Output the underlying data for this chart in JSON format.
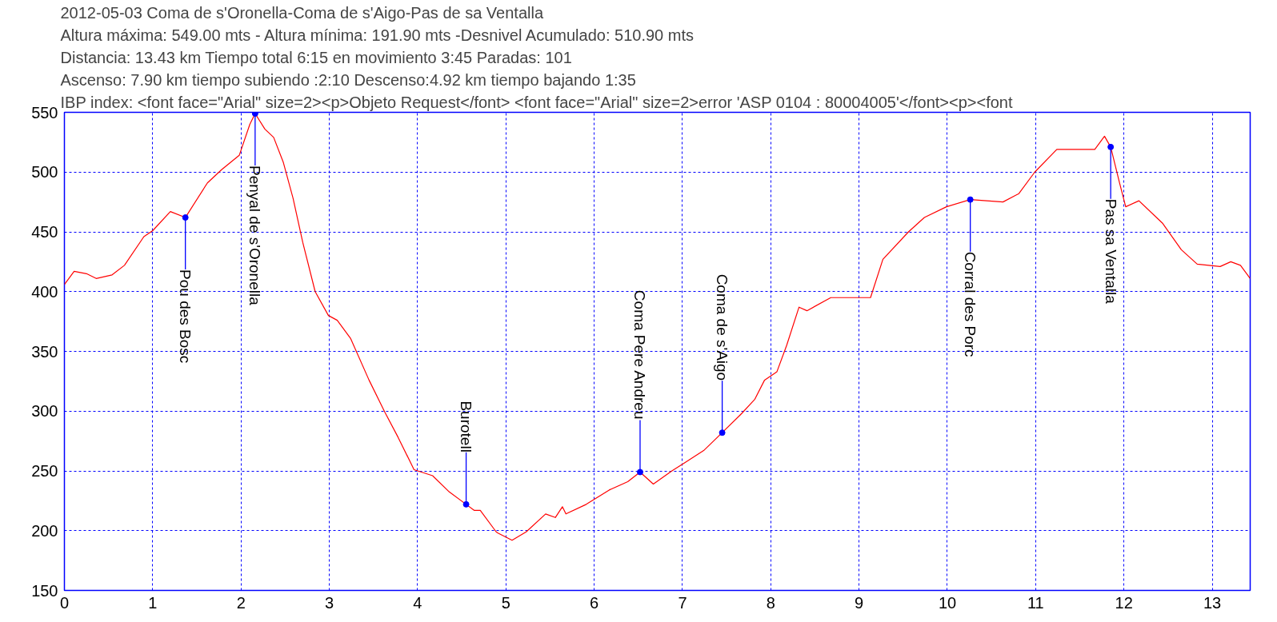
{
  "chart_data": {
    "type": "line",
    "title": "2012-05-03 Coma de s'Oronella-Coma de s'Aigo-Pas de sa Ventalla",
    "subtitle": "Altura máxima: 549.00 mts - Altura mínima: 191.90 mts -Desnivel Acumulado: 510.90 mts",
    "xlim": [
      0,
      13.43
    ],
    "ylim": [
      150,
      550
    ],
    "xticks": [
      0,
      1,
      2,
      3,
      4,
      5,
      6,
      7,
      8,
      9,
      10,
      11,
      12,
      13
    ],
    "yticks": [
      150,
      200,
      250,
      300,
      350,
      400,
      450,
      500,
      550
    ],
    "grid": true,
    "series": [
      {
        "color": "#ff0000",
        "x": [
          0,
          0.11,
          0.25,
          0.36,
          0.54,
          0.68,
          0.9,
          1.0,
          1.2,
          1.37,
          1.62,
          1.78,
          1.98,
          2.1,
          2.16,
          2.27,
          2.37,
          2.48,
          2.59,
          2.7,
          2.84,
          2.99,
          3.09,
          3.24,
          3.45,
          3.63,
          3.78,
          3.96,
          4.17,
          4.35,
          4.55,
          4.64,
          4.71,
          4.89,
          4.91,
          5.07,
          5.23,
          5.45,
          5.56,
          5.64,
          5.68,
          5.91,
          6.17,
          6.38,
          6.52,
          6.67,
          6.88,
          7.03,
          7.24,
          7.45,
          7.67,
          7.82,
          7.93,
          8.07,
          8.18,
          8.32,
          8.41,
          8.68,
          9.0,
          9.13,
          9.27,
          9.56,
          9.74,
          9.99,
          10.26,
          10.63,
          10.81,
          10.99,
          11.24,
          11.67,
          11.78,
          11.85,
          11.95,
          12.02,
          12.17,
          12.44,
          12.65,
          12.83,
          13.09,
          13.21,
          13.32,
          13.43
        ],
        "values": [
          406,
          417,
          415,
          411,
          414,
          422,
          446,
          451,
          467,
          462,
          491,
          502,
          514,
          540,
          549,
          536,
          529,
          508,
          478,
          441,
          400,
          380,
          376,
          361,
          326,
          299,
          278,
          251,
          246,
          233,
          222,
          217,
          217,
          199,
          198,
          192,
          199,
          214,
          211,
          220,
          214,
          222,
          234,
          241,
          249,
          239,
          250,
          257,
          267,
          282,
          298,
          310,
          326,
          333,
          355,
          387,
          384,
          395,
          395,
          395,
          427,
          450,
          462,
          471,
          477,
          475,
          482,
          500,
          519,
          519,
          530,
          521,
          491,
          471,
          476,
          457,
          435,
          423,
          421,
          425,
          422,
          411
        ]
      },
      {
        "type": "scatter",
        "color": "#0000ff",
        "marker": "circle",
        "x": [
          1.37,
          2.16,
          4.55,
          6.52,
          7.45,
          10.26,
          11.85
        ],
        "values": [
          462,
          549,
          222,
          249,
          282,
          477,
          521
        ]
      }
    ],
    "annotations": [
      "Distancia: 13.43 km  Tiempo total 6:15  en movimiento 3:45 Paradas: 101",
      "Ascenso: 7.90 km  tiempo subiendo :2:10  Descenso:4.92 km tiempo bajando 1:35",
      "IBP index:  <font face=\"Arial\" size=2><p>Objeto Request</font> <font face=\"Arial\" size=2>error 'ASP 0104 : 80004005'</font><p><font",
      {
        "text": "Pou  des Bosc",
        "x": 1.37,
        "y": 462
      },
      {
        "text": "Penyal de s'Oronella",
        "x": 2.16,
        "y": 549
      },
      {
        "text": "Burotell",
        "x": 4.55,
        "y": 222
      },
      {
        "text": "Coma Pere Andreu",
        "x": 6.52,
        "y": 249
      },
      {
        "text": "Coma de s'Aigo",
        "x": 7.45,
        "y": 282
      },
      {
        "text": "Corral des Porc",
        "x": 10.26,
        "y": 477
      },
      {
        "text": "Pas sa Ventalla",
        "x": 11.85,
        "y": 521
      }
    ]
  }
}
